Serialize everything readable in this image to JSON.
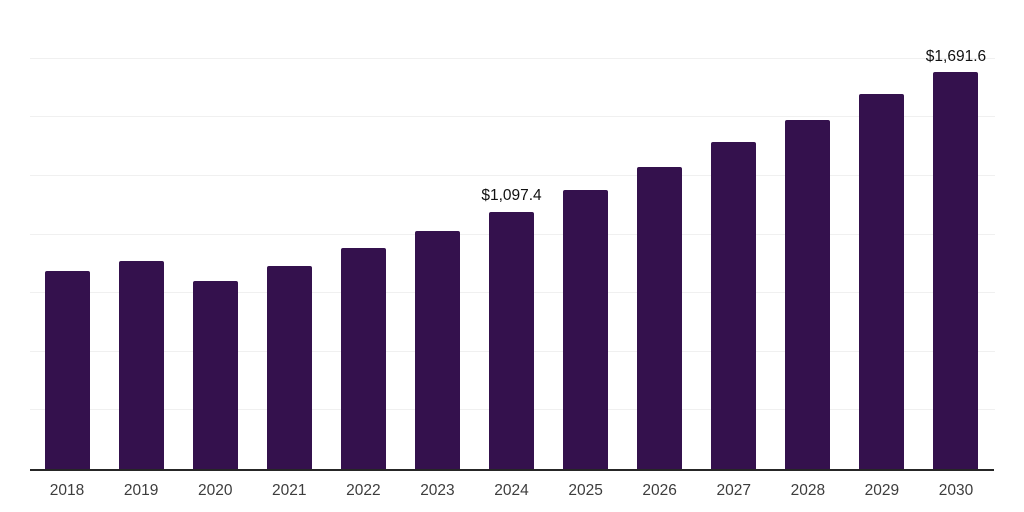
{
  "chart_data": {
    "type": "bar",
    "title": "",
    "xlabel": "",
    "ylabel": "",
    "categories": [
      "2018",
      "2019",
      "2020",
      "2021",
      "2022",
      "2023",
      "2024",
      "2025",
      "2026",
      "2027",
      "2028",
      "2029",
      "2030"
    ],
    "values": [
      844,
      888,
      800,
      867,
      942,
      1017,
      1097.4,
      1190,
      1288,
      1395,
      1489,
      1598,
      1691.6
    ],
    "data_labels": {
      "2024": "$1,097.4",
      "2030": "$1,691.6"
    },
    "ylim": [
      0,
      2000
    ],
    "gridline_step": 250,
    "grid": "horizontal",
    "legend_position": "none",
    "y_axis_labels_visible": false,
    "colors": {
      "bar": "#34114d",
      "axis_line": "#262626",
      "gridline": "#f0f0f0",
      "tick_label": "#3d3d3d",
      "data_label": "#111111",
      "background": "#ffffff"
    }
  }
}
